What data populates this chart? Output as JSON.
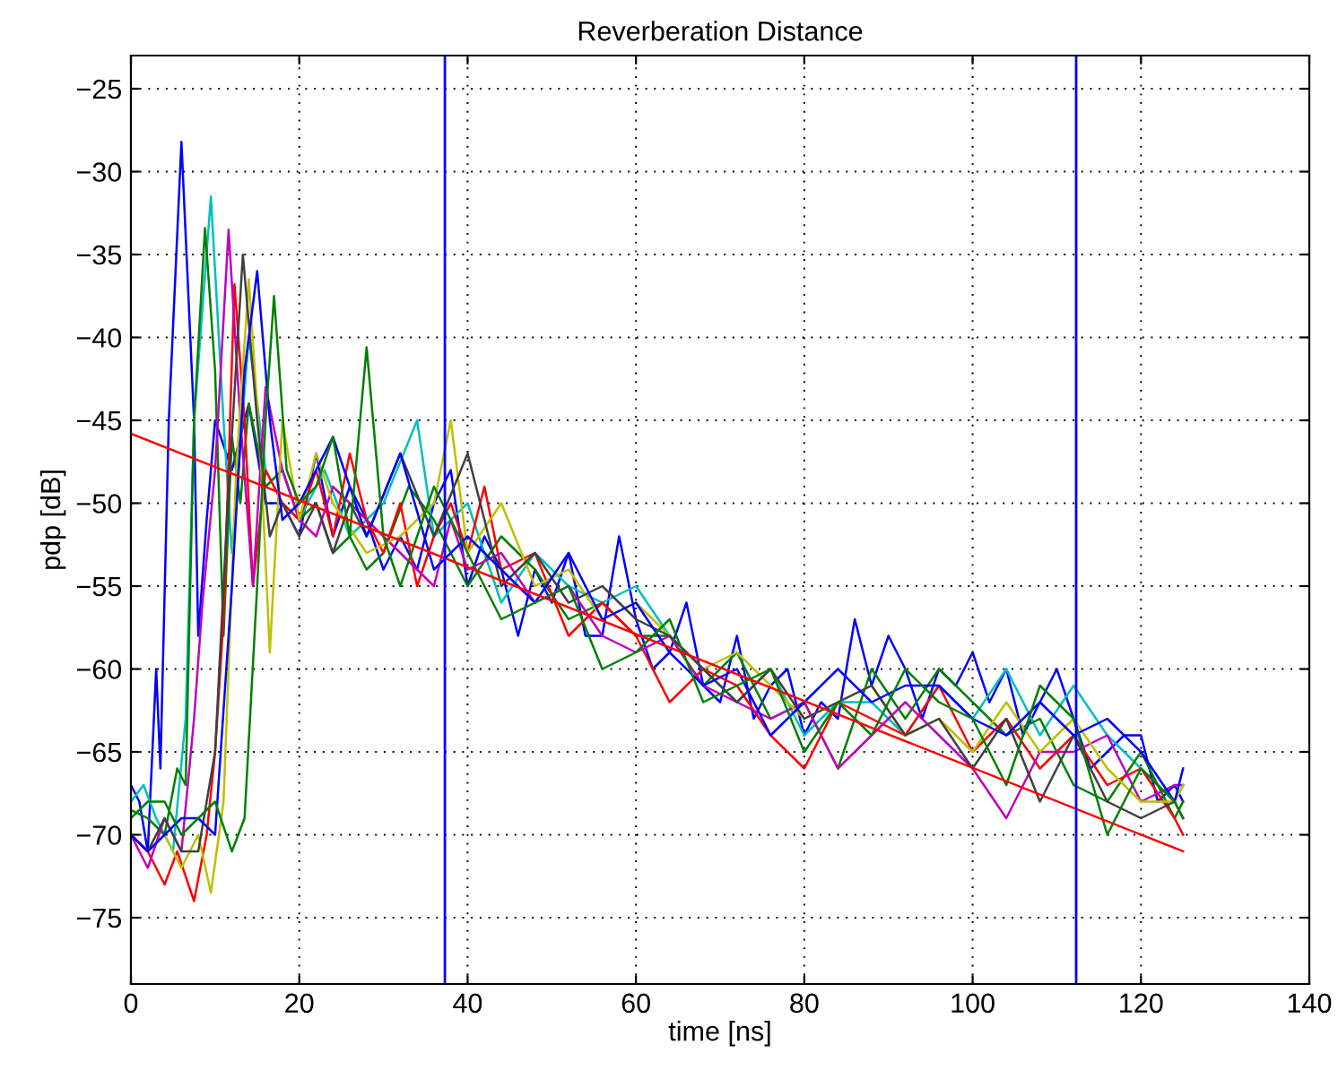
{
  "chart_data": {
    "type": "line",
    "title": "Reverberation Distance",
    "xlabel": "time [ns]",
    "ylabel": "pdp [dB]",
    "xlim": [
      0,
      140
    ],
    "xticks": [
      0,
      20,
      40,
      60,
      80,
      100,
      120,
      140
    ],
    "ylim": [
      -79,
      -23
    ],
    "yticks": [
      -75,
      -70,
      -65,
      -60,
      -55,
      -50,
      -45,
      -40,
      -35,
      -30,
      -25
    ],
    "grid": true,
    "legend": false,
    "marker": "none",
    "line_style": "solid",
    "series": [
      {
        "color": "#0000ff",
        "x": [
          0,
          1,
          2,
          3,
          3.5,
          4.5,
          6,
          7.5,
          8,
          9,
          10,
          12,
          14,
          16,
          18,
          20,
          22,
          24,
          26,
          28,
          30,
          32,
          34,
          36,
          38,
          40,
          42,
          44,
          46,
          48,
          50,
          52,
          54,
          56,
          58,
          60,
          62,
          64,
          66,
          68,
          70,
          72,
          74,
          76,
          78,
          80,
          82,
          84,
          86,
          88,
          90,
          92,
          94,
          96,
          98,
          100,
          102,
          104,
          106,
          108,
          110,
          112,
          114,
          116,
          118,
          120,
          122,
          124,
          125
        ],
        "values": [
          -67,
          -68,
          -71,
          -60,
          -66,
          -45,
          -28.2,
          -45,
          -58,
          -51,
          -45,
          -48,
          -44,
          -50,
          -50,
          -52,
          -47,
          -52,
          -49,
          -51,
          -54,
          -52,
          -54,
          -50,
          -48,
          -55,
          -52,
          -54,
          -58,
          -54,
          -56,
          -53,
          -58,
          -58,
          -52,
          -57,
          -60,
          -59,
          -56,
          -61,
          -62,
          -58,
          -63,
          -61,
          -60,
          -64,
          -62,
          -63,
          -57,
          -61,
          -58,
          -60,
          -63,
          -60,
          -61,
          -59,
          -62,
          -60,
          -64,
          -62,
          -60,
          -63,
          -66,
          -65,
          -64,
          -64,
          -68,
          -67,
          -68
        ]
      },
      {
        "color": "#00bfbf",
        "x": [
          0,
          1.5,
          3,
          5,
          6.5,
          7.5,
          9.5,
          11,
          12,
          14,
          16,
          18,
          20,
          23,
          26,
          30,
          34,
          36,
          40,
          44,
          48,
          52,
          56,
          60,
          64,
          68,
          72,
          76,
          80,
          84,
          88,
          92,
          96,
          100,
          104,
          108,
          112,
          116,
          120,
          124,
          125
        ],
        "values": [
          -68,
          -67,
          -69,
          -71,
          -63,
          -45,
          -31.5,
          -45,
          -53,
          -40,
          -48,
          -50,
          -51,
          -48,
          -52,
          -50,
          -45,
          -52,
          -50,
          -56,
          -53,
          -55,
          -56,
          -55,
          -58,
          -60,
          -62,
          -60,
          -64,
          -62,
          -62,
          -64,
          -61,
          -63,
          -60,
          -64,
          -61,
          -64,
          -66,
          -68,
          -67
        ]
      },
      {
        "color": "#008000",
        "x": [
          0,
          2,
          4,
          5.5,
          6.5,
          7.5,
          8.8,
          10,
          11,
          12,
          13,
          14,
          16,
          18,
          20,
          22,
          24,
          26,
          28,
          30,
          33,
          36,
          40,
          44,
          48,
          52,
          56,
          60,
          64,
          68,
          72,
          76,
          80,
          84,
          88,
          92,
          96,
          100,
          104,
          108,
          112,
          116,
          120,
          124,
          125
        ],
        "values": [
          -68.5,
          -69,
          -70,
          -66,
          -67,
          -45,
          -33.4,
          -42,
          -58,
          -46,
          -50,
          -44,
          -49,
          -48,
          -51,
          -50,
          -53,
          -52,
          -54,
          -53,
          -49,
          -51,
          -55,
          -52,
          -54,
          -57,
          -56,
          -58,
          -58,
          -61,
          -59,
          -63,
          -62,
          -66,
          -60,
          -63,
          -60,
          -62,
          -64,
          -63,
          -67,
          -68,
          -65,
          -69,
          -68
        ]
      },
      {
        "color": "#ff0000",
        "x": [
          0,
          2,
          4,
          5.5,
          7.5,
          9,
          10,
          11,
          12.3,
          13.5,
          14.5,
          16,
          18,
          20,
          22,
          24,
          26,
          28,
          30,
          32,
          34,
          36,
          38,
          40,
          42,
          44,
          48,
          52,
          56,
          60,
          64,
          68,
          72,
          76,
          80,
          84,
          88,
          92,
          96,
          100,
          104,
          108,
          112,
          116,
          120,
          124,
          125
        ],
        "values": [
          -70,
          -71,
          -73,
          -71,
          -74,
          -70,
          -65,
          -57,
          -36.8,
          -45,
          -55,
          -48,
          -50,
          -51,
          -48,
          -52,
          -47,
          -51,
          -53,
          -50,
          -55,
          -52,
          -50,
          -53,
          -49,
          -54,
          -53,
          -58,
          -56,
          -58,
          -62,
          -60,
          -61,
          -64,
          -66,
          -62,
          -63,
          -64,
          -61,
          -65,
          -63,
          -66,
          -64,
          -67,
          -66,
          -69,
          -70
        ]
      },
      {
        "color": "#bf00bf",
        "x": [
          0,
          2,
          4,
          6,
          7.5,
          8.5,
          10,
          11.6,
          13,
          14.5,
          16,
          18,
          20,
          22,
          24,
          26,
          30,
          34,
          36,
          38,
          40,
          44,
          48,
          52,
          56,
          60,
          64,
          68,
          72,
          76,
          80,
          84,
          88,
          92,
          96,
          100,
          104,
          108,
          112,
          116,
          120,
          124,
          125
        ],
        "values": [
          -70,
          -72,
          -69,
          -71,
          -63,
          -56,
          -48,
          -33.5,
          -45,
          -55,
          -43,
          -48,
          -51,
          -52,
          -49,
          -50,
          -52,
          -54,
          -55,
          -51,
          -54,
          -53,
          -56,
          -55,
          -58,
          -59,
          -58,
          -61,
          -62,
          -63,
          -62,
          -66,
          -64,
          -62,
          -64,
          -66,
          -69,
          -65,
          -65,
          -64,
          -68,
          -67,
          -67
        ]
      },
      {
        "color": "#bfbf00",
        "x": [
          0,
          2,
          4,
          6,
          8,
          9.5,
          11,
          12.5,
          14,
          15.5,
          16.5,
          18,
          20,
          22,
          24,
          28,
          32,
          36,
          38,
          40,
          44,
          48,
          52,
          56,
          60,
          64,
          68,
          72,
          76,
          80,
          84,
          88,
          92,
          96,
          100,
          104,
          108,
          112,
          116,
          120,
          124,
          125
        ],
        "values": [
          -70,
          -71,
          -70,
          -72,
          -70,
          -73.5,
          -68,
          -48,
          -36.5,
          -48,
          -59,
          -45,
          -51,
          -47,
          -50,
          -53,
          -52,
          -50,
          -45,
          -53,
          -50,
          -55,
          -54,
          -57,
          -56,
          -58,
          -60,
          -59,
          -61,
          -63,
          -62,
          -61,
          -64,
          -63,
          -65,
          -62,
          -65,
          -63,
          -66,
          -68,
          -68,
          -67
        ]
      },
      {
        "color": "#404040",
        "x": [
          0,
          2,
          4,
          6,
          8,
          10,
          11.5,
          13.3,
          15,
          16.5,
          18,
          20,
          22,
          24,
          26,
          28,
          32,
          36,
          40,
          44,
          48,
          52,
          56,
          60,
          64,
          68,
          72,
          76,
          80,
          84,
          88,
          92,
          96,
          100,
          104,
          108,
          112,
          116,
          120,
          124,
          125
        ],
        "values": [
          -70,
          -71,
          -69,
          -71,
          -71,
          -65,
          -50,
          -35,
          -45,
          -52,
          -50,
          -52,
          -50,
          -53,
          -50,
          -52,
          -47,
          -52,
          -47,
          -55,
          -53,
          -56,
          -55,
          -57,
          -58,
          -60,
          -62,
          -60,
          -63,
          -62,
          -61,
          -64,
          -63,
          -66,
          -63,
          -68,
          -64,
          -68,
          -69,
          -68,
          -69
        ]
      },
      {
        "color": "#0000ff",
        "x": [
          0,
          2,
          4,
          6,
          8,
          10,
          12,
          13.5,
          15,
          16.5,
          18,
          20,
          24,
          28,
          32,
          36,
          40,
          44,
          48,
          52,
          56,
          60,
          64,
          68,
          72,
          76,
          80,
          84,
          88,
          92,
          96,
          100,
          104,
          108,
          112,
          116,
          120,
          124,
          125
        ],
        "values": [
          -70,
          -71,
          -70,
          -69,
          -69,
          -70,
          -55,
          -42,
          -36,
          -45,
          -51,
          -50,
          -46,
          -52,
          -47,
          -54,
          -52,
          -54,
          -56,
          -53,
          -57,
          -56,
          -59,
          -61,
          -60,
          -64,
          -62,
          -60,
          -62,
          -61,
          -61,
          -63,
          -64,
          -62,
          -64,
          -63,
          -65,
          -68,
          -66
        ]
      },
      {
        "color": "#008000",
        "x": [
          0,
          2,
          4,
          6,
          8,
          10,
          12,
          13.5,
          15,
          16,
          17,
          18.5,
          20,
          22,
          24,
          26,
          28,
          30,
          32,
          36,
          40,
          44,
          48,
          52,
          56,
          60,
          64,
          68,
          72,
          76,
          80,
          84,
          88,
          92,
          96,
          100,
          104,
          108,
          112,
          116,
          120,
          124,
          125
        ],
        "values": [
          -69,
          -68,
          -68,
          -70,
          -69,
          -68,
          -71,
          -69,
          -55,
          -45,
          -37.5,
          -48,
          -50,
          -49,
          -46,
          -52,
          -40.6,
          -52,
          -55,
          -49,
          -53,
          -57,
          -56,
          -55,
          -60,
          -59,
          -57,
          -62,
          -61,
          -60,
          -65,
          -62,
          -64,
          -60,
          -62,
          -63,
          -67,
          -61,
          -63,
          -70,
          -66,
          -68,
          -69
        ]
      },
      {
        "type": "line",
        "color": "#ff0000",
        "x": [
          0,
          125
        ],
        "values": [
          -45.8,
          -71
        ]
      }
    ],
    "ref_lines": [
      {
        "axis": "x",
        "value": 37.3,
        "color": "#0000ff"
      },
      {
        "axis": "x",
        "value": 112.3,
        "color": "#0000ff"
      }
    ]
  }
}
